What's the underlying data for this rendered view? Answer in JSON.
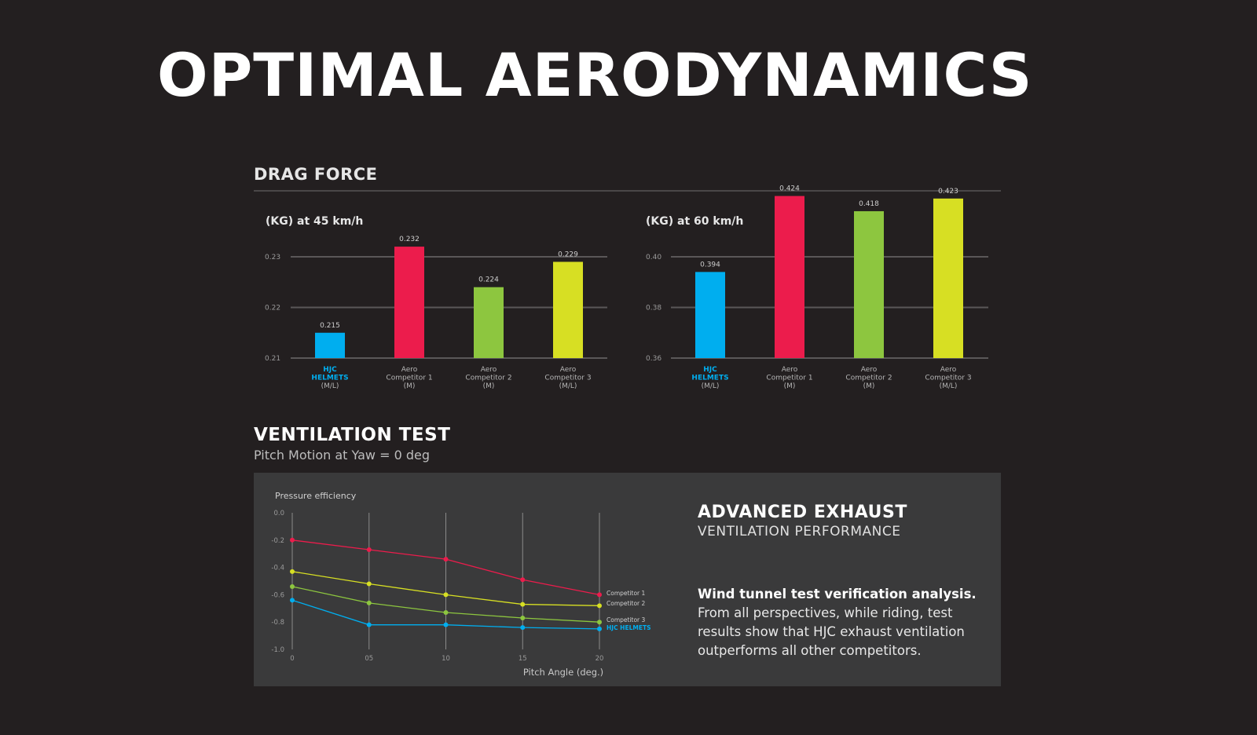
{
  "page": {
    "title": "OPTIMAL AERODYNAMICS",
    "drag_section_title": "DRAG FORCE",
    "ventilation_title": "VENTILATION TEST",
    "ventilation_subtitle": "Pitch Motion at Yaw = 0 deg",
    "exhaust_title": "ADVANCED EXHAUST",
    "exhaust_subtitle": "VENTILATION PERFORMANCE",
    "description_bold": "Wind tunnel test verification analysis.",
    "description_text": "From all perspectives, while riding, test results show that HJC exhaust ventilation outperforms all other competitors."
  },
  "colors": {
    "hjc": "#00aeef",
    "competitor_1": "#ec1c4c",
    "competitor_2": "#8dc63f",
    "competitor_3": "#d7df23",
    "background": "#231f20",
    "panel": "#3a3a3b"
  },
  "chart_data": [
    {
      "type": "bar",
      "title": "(KG) at 45 km/h",
      "categories": [
        [
          "HJC",
          "HELMETS",
          "(M/L)"
        ],
        [
          "Aero",
          "Competitor 1",
          "(M)"
        ],
        [
          "Aero",
          "Competitor 2",
          "(M)"
        ],
        [
          "Aero",
          "Competitor 3",
          "(M/L)"
        ]
      ],
      "values": [
        0.215,
        0.232,
        0.224,
        0.229
      ],
      "value_labels": [
        "0.215",
        "0.232",
        "0.224",
        "0.229"
      ],
      "yticks": [
        "0.21",
        "0.22",
        "0.23"
      ],
      "ytick_values": [
        0.21,
        0.22,
        0.23
      ],
      "ylim": [
        0.21,
        0.23
      ],
      "grid": true
    },
    {
      "type": "bar",
      "title": "(KG) at 60 km/h",
      "categories": [
        [
          "HJC",
          "HELMETS",
          "(M/L)"
        ],
        [
          "Aero",
          "Competitor 1",
          "(M)"
        ],
        [
          "Aero",
          "Competitor 2",
          "(M)"
        ],
        [
          "Aero",
          "Competitor 3",
          "(M/L)"
        ]
      ],
      "values": [
        0.394,
        0.424,
        0.418,
        0.423
      ],
      "value_labels": [
        "0.394",
        "0.424",
        "0.418",
        "0.423"
      ],
      "yticks": [
        "0.36",
        "0.38",
        "0.40"
      ],
      "ytick_values": [
        0.36,
        0.38,
        0.4
      ],
      "ylim": [
        0.36,
        0.4
      ],
      "grid": true
    },
    {
      "type": "line",
      "ylabel": "Pressure efficiency",
      "xlabel": "Pitch Angle (deg.)",
      "x": [
        0,
        5,
        10,
        15,
        20
      ],
      "xtick_labels": [
        "0",
        "05",
        "10",
        "15",
        "20"
      ],
      "yticks": [
        "0.0",
        "-0.2",
        "-0.4",
        "-0.6",
        "-0.8",
        "-1.0"
      ],
      "ytick_values": [
        0.0,
        -0.2,
        -0.4,
        -0.6,
        -0.8,
        -1.0
      ],
      "ylim": [
        -1.0,
        0.0
      ],
      "grid": "vertical",
      "series": [
        {
          "name": "Competitor 1",
          "values": [
            -0.2,
            -0.27,
            -0.34,
            -0.49,
            -0.6
          ]
        },
        {
          "name": "Competitor 2",
          "values": [
            -0.43,
            -0.52,
            -0.6,
            -0.67,
            -0.68
          ]
        },
        {
          "name": "Competitor 3",
          "values": [
            -0.54,
            -0.66,
            -0.73,
            -0.77,
            -0.8
          ]
        },
        {
          "name": "HJC HELMETS",
          "values": [
            -0.64,
            -0.82,
            -0.82,
            -0.84,
            -0.85
          ]
        }
      ]
    }
  ]
}
